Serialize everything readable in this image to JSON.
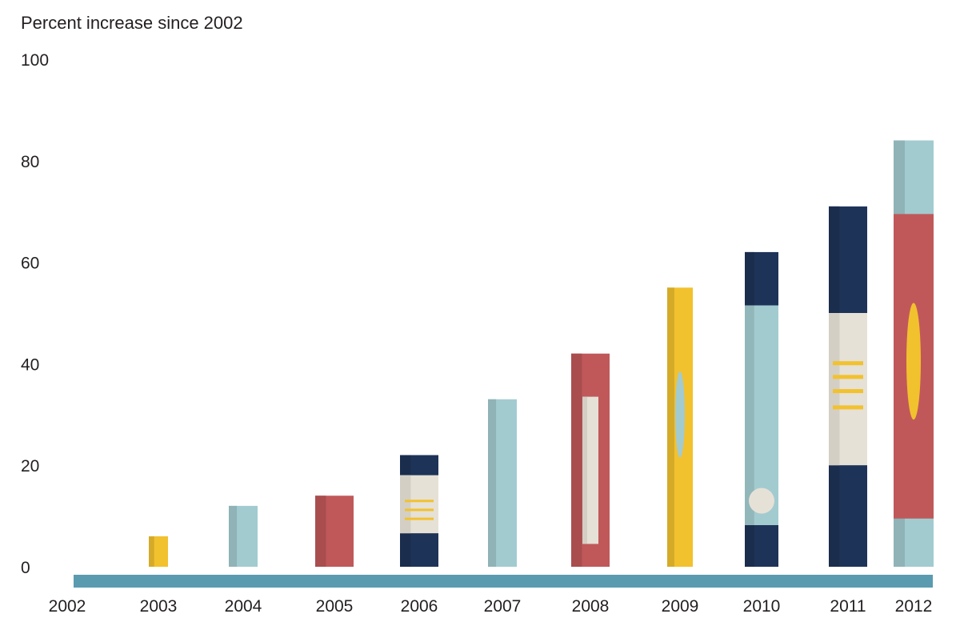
{
  "chart_data": {
    "type": "bar",
    "title": "",
    "xlabel": "",
    "ylabel": "Percent increase since 2002",
    "ylim": [
      0,
      100
    ],
    "yticks": [
      0,
      20,
      40,
      60,
      80,
      100
    ],
    "grid": false,
    "legend": "none",
    "baseline_color": "#5a9bb0",
    "categories": [
      "2002",
      "2003",
      "2004",
      "2005",
      "2006",
      "2007",
      "2008",
      "2009",
      "2010",
      "2011",
      "2012"
    ],
    "series": [
      {
        "values": [
          0,
          6,
          12,
          14,
          22,
          33,
          42,
          55,
          62,
          71,
          84
        ],
        "colors": [
          "",
          "#f2c12e",
          "#a2cbd0",
          "#c0585a",
          "#1e3358",
          "#a2cbd0",
          "#c0585a",
          "#f2c12e",
          "#1e3358",
          "#1e3358",
          "#a2cbd0"
        ]
      }
    ]
  }
}
